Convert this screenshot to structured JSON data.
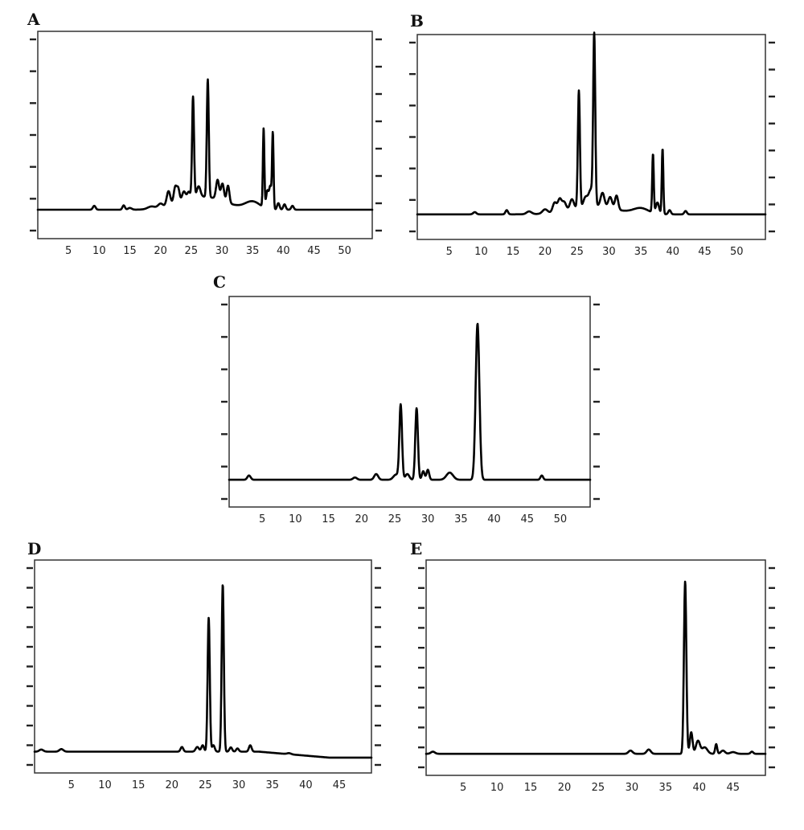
{
  "chart_data": [
    {
      "panel": "A",
      "type": "line",
      "x_ticks": [
        5,
        10,
        15,
        20,
        25,
        30,
        35,
        40,
        45,
        50
      ],
      "xlim": [
        0,
        54.5
      ],
      "ylim": [
        -1.3,
        8.3
      ],
      "y_gridmarks_left": 7,
      "y_gridmarks_right": 8,
      "baseline": 0.04,
      "peaks": [
        {
          "x": 9.2,
          "y": 0.18,
          "w": 0.22
        },
        {
          "x": 14.0,
          "y": 0.2,
          "w": 0.2
        },
        {
          "x": 15.0,
          "y": 0.08,
          "w": 0.3
        },
        {
          "x": 18.5,
          "y": 0.12,
          "w": 0.6
        },
        {
          "x": 20.0,
          "y": 0.2,
          "w": 0.4
        },
        {
          "x": 21.3,
          "y": 0.7,
          "w": 0.3
        },
        {
          "x": 22.4,
          "y": 0.8,
          "w": 0.26
        },
        {
          "x": 22.9,
          "y": 0.6,
          "w": 0.22
        },
        {
          "x": 23.8,
          "y": 0.45,
          "w": 0.3
        },
        {
          "x": 24.6,
          "y": 0.35,
          "w": 0.25
        },
        {
          "x": 25.3,
          "y": 4.7,
          "w": 0.16
        },
        {
          "x": 26.2,
          "y": 0.5,
          "w": 0.3
        },
        {
          "x": 27.7,
          "y": 5.45,
          "w": 0.16
        },
        {
          "x": 29.3,
          "y": 0.9,
          "w": 0.25
        },
        {
          "x": 30.1,
          "y": 0.8,
          "w": 0.25
        },
        {
          "x": 31.0,
          "y": 0.8,
          "w": 0.22
        },
        {
          "x": 27.0,
          "y": 0.6,
          "w": 3.5
        },
        {
          "x": 35.0,
          "y": 0.35,
          "w": 1.2
        },
        {
          "x": 36.8,
          "y": 3.65,
          "w": 0.12
        },
        {
          "x": 37.4,
          "y": 0.8,
          "w": 0.2
        },
        {
          "x": 37.9,
          "y": 1.05,
          "w": 0.2
        },
        {
          "x": 38.3,
          "y": 3.45,
          "w": 0.12
        },
        {
          "x": 39.2,
          "y": 0.3,
          "w": 0.2
        },
        {
          "x": 40.2,
          "y": 0.25,
          "w": 0.2
        },
        {
          "x": 41.5,
          "y": 0.18,
          "w": 0.2
        }
      ]
    },
    {
      "panel": "B",
      "type": "line",
      "x_ticks": [
        5,
        10,
        15,
        20,
        25,
        30,
        35,
        40,
        45,
        50
      ],
      "xlim": [
        0,
        54.5
      ],
      "ylim": [
        -0.85,
        6.5
      ],
      "y_gridmarks_left": 7,
      "y_gridmarks_right": 8,
      "baseline": 0.05,
      "peaks": [
        {
          "x": 9.0,
          "y": 0.08,
          "w": 0.25
        },
        {
          "x": 14.0,
          "y": 0.15,
          "w": 0.2
        },
        {
          "x": 17.5,
          "y": 0.1,
          "w": 0.4
        },
        {
          "x": 20.0,
          "y": 0.15,
          "w": 0.4
        },
        {
          "x": 21.5,
          "y": 0.35,
          "w": 0.3
        },
        {
          "x": 22.3,
          "y": 0.45,
          "w": 0.3
        },
        {
          "x": 23.0,
          "y": 0.3,
          "w": 0.3
        },
        {
          "x": 24.2,
          "y": 0.35,
          "w": 0.3
        },
        {
          "x": 25.3,
          "y": 4.2,
          "w": 0.16
        },
        {
          "x": 26.3,
          "y": 0.3,
          "w": 0.3
        },
        {
          "x": 27.7,
          "y": 5.95,
          "w": 0.16
        },
        {
          "x": 27.2,
          "y": 0.6,
          "w": 0.4
        },
        {
          "x": 29.0,
          "y": 0.5,
          "w": 0.3
        },
        {
          "x": 30.2,
          "y": 0.4,
          "w": 0.3
        },
        {
          "x": 31.2,
          "y": 0.5,
          "w": 0.25
        },
        {
          "x": 27.5,
          "y": 0.3,
          "w": 3.5
        },
        {
          "x": 35.0,
          "y": 0.2,
          "w": 1.2
        },
        {
          "x": 36.9,
          "y": 2.1,
          "w": 0.12
        },
        {
          "x": 37.6,
          "y": 0.4,
          "w": 0.25
        },
        {
          "x": 38.4,
          "y": 2.35,
          "w": 0.12
        },
        {
          "x": 39.5,
          "y": 0.15,
          "w": 0.2
        },
        {
          "x": 42.0,
          "y": 0.12,
          "w": 0.2
        }
      ]
    },
    {
      "panel": "C",
      "type": "line",
      "x_ticks": [
        5,
        10,
        15,
        20,
        25,
        30,
        35,
        40,
        45,
        50
      ],
      "xlim": [
        0,
        54.5
      ],
      "ylim": [
        -0.85,
        6.5
      ],
      "y_gridmarks_left": 7,
      "y_gridmarks_right": 7,
      "baseline": 0.1,
      "peaks": [
        {
          "x": 3.0,
          "y": 0.15,
          "w": 0.25
        },
        {
          "x": 19.0,
          "y": 0.08,
          "w": 0.3
        },
        {
          "x": 22.2,
          "y": 0.2,
          "w": 0.3
        },
        {
          "x": 25.2,
          "y": 0.18,
          "w": 0.4
        },
        {
          "x": 25.9,
          "y": 2.6,
          "w": 0.2
        },
        {
          "x": 26.9,
          "y": 0.2,
          "w": 0.3
        },
        {
          "x": 28.3,
          "y": 2.5,
          "w": 0.2
        },
        {
          "x": 29.3,
          "y": 0.3,
          "w": 0.2
        },
        {
          "x": 30.0,
          "y": 0.35,
          "w": 0.2
        },
        {
          "x": 33.3,
          "y": 0.25,
          "w": 0.5
        },
        {
          "x": 37.5,
          "y": 5.45,
          "w": 0.28
        },
        {
          "x": 47.2,
          "y": 0.15,
          "w": 0.2
        }
      ]
    },
    {
      "panel": "D",
      "type": "line",
      "x_ticks": [
        5,
        10,
        15,
        20,
        25,
        30,
        35,
        40,
        45
      ],
      "xlim": [
        -0.5,
        49.8
      ],
      "ylim": [
        -1,
        9
      ],
      "y_gridmarks_left": 11,
      "y_gridmarks_right": 11,
      "baseline": 0.0,
      "drift_end": -0.28,
      "peaks": [
        {
          "x": 0.5,
          "y": 0.1,
          "w": 0.3
        },
        {
          "x": 3.5,
          "y": 0.12,
          "w": 0.3
        },
        {
          "x": 21.5,
          "y": 0.22,
          "w": 0.2
        },
        {
          "x": 23.8,
          "y": 0.22,
          "w": 0.25
        },
        {
          "x": 24.6,
          "y": 0.3,
          "w": 0.2
        },
        {
          "x": 25.5,
          "y": 6.3,
          "w": 0.16
        },
        {
          "x": 26.2,
          "y": 0.3,
          "w": 0.2
        },
        {
          "x": 27.6,
          "y": 7.85,
          "w": 0.16
        },
        {
          "x": 28.8,
          "y": 0.2,
          "w": 0.2
        },
        {
          "x": 29.8,
          "y": 0.15,
          "w": 0.2
        },
        {
          "x": 31.7,
          "y": 0.3,
          "w": 0.2
        },
        {
          "x": 37.5,
          "y": 0.05,
          "w": 0.3
        }
      ]
    },
    {
      "panel": "E",
      "type": "line",
      "x_ticks": [
        5,
        10,
        15,
        20,
        25,
        30,
        35,
        40,
        45
      ],
      "xlim": [
        -0.5,
        49.8
      ],
      "ylim": [
        -1,
        9
      ],
      "y_gridmarks_left": 11,
      "y_gridmarks_right": 11,
      "baseline": 0.0,
      "peaks": [
        {
          "x": 0.5,
          "y": 0.1,
          "w": 0.3
        },
        {
          "x": 29.8,
          "y": 0.15,
          "w": 0.3
        },
        {
          "x": 32.5,
          "y": 0.2,
          "w": 0.3
        },
        {
          "x": 37.9,
          "y": 8.0,
          "w": 0.18
        },
        {
          "x": 38.8,
          "y": 1.0,
          "w": 0.2
        },
        {
          "x": 39.8,
          "y": 0.6,
          "w": 0.3
        },
        {
          "x": 40.8,
          "y": 0.3,
          "w": 0.4
        },
        {
          "x": 42.5,
          "y": 0.45,
          "w": 0.15
        },
        {
          "x": 43.5,
          "y": 0.15,
          "w": 0.3
        },
        {
          "x": 45.0,
          "y": 0.08,
          "w": 0.4
        },
        {
          "x": 47.8,
          "y": 0.1,
          "w": 0.2
        }
      ]
    }
  ]
}
